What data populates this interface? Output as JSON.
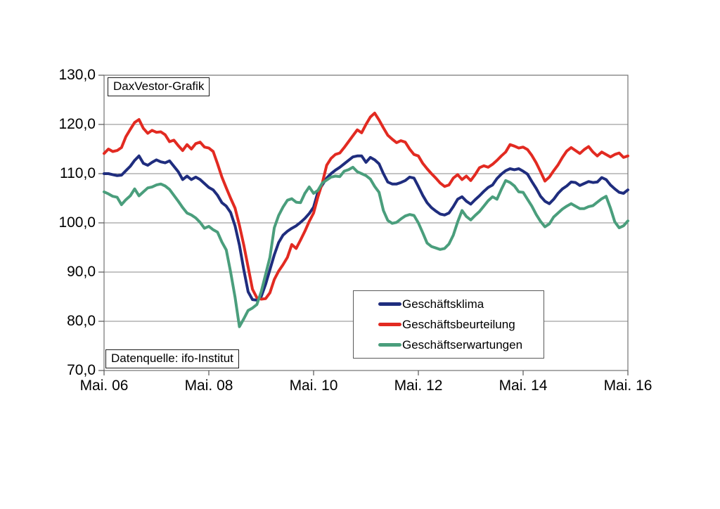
{
  "annotations": {
    "title_box": "DaxVestor-Grafik",
    "source_box": "Datenquelle: ifo-Institut"
  },
  "chart_data": {
    "type": "line",
    "title": "DaxVestor-Grafik",
    "source": "Datenquelle: ifo-Institut",
    "x_unit": "monthly, Mai 2006 - Mai 2016",
    "x_tick_labels": [
      "Mai. 06",
      "Mai. 08",
      "Mai. 10",
      "Mai. 12",
      "Mai. 14",
      "Mai. 16"
    ],
    "x_tick_month_indices": [
      0,
      24,
      48,
      72,
      96,
      120
    ],
    "y_tick_labels": [
      "130,0",
      "120,0",
      "110,0",
      "100,0",
      "90,0",
      "80,0",
      "70,0"
    ],
    "y_ticks": [
      130,
      120,
      110,
      100,
      90,
      80,
      70
    ],
    "ylim": [
      70,
      130
    ],
    "grid": true,
    "legend_position": "inside-bottom-center",
    "series": [
      {
        "name": "Geschäftsklima",
        "color": "#1f2d7e",
        "values": [
          110.0,
          110.0,
          109.8,
          109.6,
          109.7,
          110.6,
          111.5,
          112.7,
          113.6,
          112.1,
          111.7,
          112.3,
          112.8,
          112.4,
          112.2,
          112.6,
          111.5,
          110.4,
          108.8,
          109.5,
          108.8,
          109.3,
          108.8,
          108.0,
          107.2,
          106.7,
          105.6,
          104.1,
          103.4,
          102.1,
          99.4,
          95.5,
          90.5,
          86.0,
          84.4,
          84.3,
          85.0,
          87.5,
          90.5,
          93.5,
          96.0,
          97.5,
          98.3,
          98.9,
          99.4,
          100.1,
          100.9,
          101.9,
          103.2,
          106.3,
          107.7,
          109.1,
          110.0,
          110.7,
          111.3,
          112.0,
          112.7,
          113.4,
          113.6,
          113.6,
          112.3,
          113.3,
          112.8,
          112.0,
          110.0,
          108.3,
          107.9,
          107.9,
          108.2,
          108.6,
          109.3,
          109.1,
          107.4,
          105.6,
          104.1,
          103.1,
          102.4,
          101.8,
          101.6,
          102.0,
          103.3,
          104.8,
          105.3,
          104.4,
          103.8,
          104.7,
          105.5,
          106.4,
          107.2,
          107.7,
          109.0,
          109.9,
          110.6,
          111.0,
          110.8,
          111.0,
          110.5,
          109.9,
          108.4,
          107.0,
          105.4,
          104.4,
          103.9,
          104.8,
          106.0,
          106.9,
          107.5,
          108.3,
          108.2,
          107.6,
          108.0,
          108.4,
          108.2,
          108.3,
          109.2,
          108.8,
          107.7,
          106.9,
          106.2,
          106.0,
          106.7
        ]
      },
      {
        "name": "Geschäftsbeurteilung",
        "color": "#e22a21",
        "values": [
          114.1,
          115.0,
          114.5,
          114.7,
          115.3,
          117.5,
          119.0,
          120.4,
          121.0,
          119.2,
          118.2,
          118.8,
          118.4,
          118.5,
          117.9,
          116.5,
          116.8,
          115.7,
          114.7,
          115.9,
          115.0,
          116.1,
          116.4,
          115.4,
          115.2,
          114.5,
          112.0,
          109.3,
          107.1,
          105.0,
          103.0,
          99.5,
          95.5,
          91.0,
          86.5,
          84.8,
          84.5,
          84.6,
          85.8,
          88.5,
          90.2,
          91.5,
          93.0,
          95.6,
          94.8,
          96.5,
          98.3,
          100.3,
          102.0,
          105.3,
          108.1,
          111.7,
          113.1,
          113.9,
          114.2,
          115.3,
          116.5,
          117.7,
          118.9,
          118.3,
          120.0,
          121.5,
          122.3,
          120.9,
          119.3,
          117.8,
          117.0,
          116.3,
          116.7,
          116.4,
          115.0,
          113.9,
          113.6,
          112.1,
          111.0,
          110.0,
          109.1,
          108.1,
          107.4,
          107.7,
          109.1,
          109.8,
          108.8,
          109.5,
          108.6,
          109.8,
          111.2,
          111.6,
          111.3,
          111.9,
          112.7,
          113.6,
          114.4,
          115.9,
          115.6,
          115.2,
          115.4,
          114.9,
          113.7,
          112.2,
          110.4,
          108.5,
          109.3,
          110.6,
          111.8,
          113.3,
          114.6,
          115.3,
          114.7,
          114.1,
          114.9,
          115.5,
          114.4,
          113.6,
          114.4,
          113.9,
          113.4,
          113.9,
          114.2,
          113.3,
          113.6
        ]
      },
      {
        "name": "Geschäftserwartungen",
        "color": "#4a9e7c",
        "values": [
          106.3,
          105.9,
          105.4,
          105.2,
          103.7,
          104.7,
          105.5,
          106.9,
          105.5,
          106.3,
          107.1,
          107.3,
          107.7,
          107.9,
          107.5,
          106.8,
          105.6,
          104.4,
          103.1,
          102.0,
          101.6,
          101.0,
          100.1,
          98.9,
          99.3,
          98.6,
          98.1,
          96.1,
          94.5,
          90.0,
          84.9,
          78.9,
          80.5,
          82.2,
          82.7,
          83.4,
          86.0,
          89.5,
          93.0,
          99.0,
          101.5,
          103.2,
          104.6,
          104.9,
          104.2,
          104.1,
          106.0,
          107.3,
          106.0,
          106.6,
          108.1,
          108.7,
          109.3,
          109.5,
          109.4,
          110.5,
          110.8,
          111.3,
          110.4,
          110.0,
          109.6,
          108.9,
          107.4,
          106.2,
          102.5,
          100.5,
          99.9,
          100.1,
          100.8,
          101.4,
          101.7,
          101.5,
          100.0,
          98.0,
          95.9,
          95.2,
          94.9,
          94.6,
          94.8,
          95.7,
          97.5,
          100.2,
          102.5,
          101.3,
          100.6,
          101.5,
          102.3,
          103.4,
          104.5,
          105.3,
          104.8,
          106.8,
          108.6,
          108.2,
          107.5,
          106.3,
          106.2,
          104.8,
          103.4,
          101.7,
          100.3,
          99.2,
          99.8,
          101.2,
          102.0,
          102.8,
          103.4,
          103.9,
          103.4,
          102.9,
          102.9,
          103.3,
          103.5,
          104.2,
          104.9,
          105.4,
          103.0,
          100.2,
          99.0,
          99.4,
          100.4
        ]
      }
    ]
  }
}
